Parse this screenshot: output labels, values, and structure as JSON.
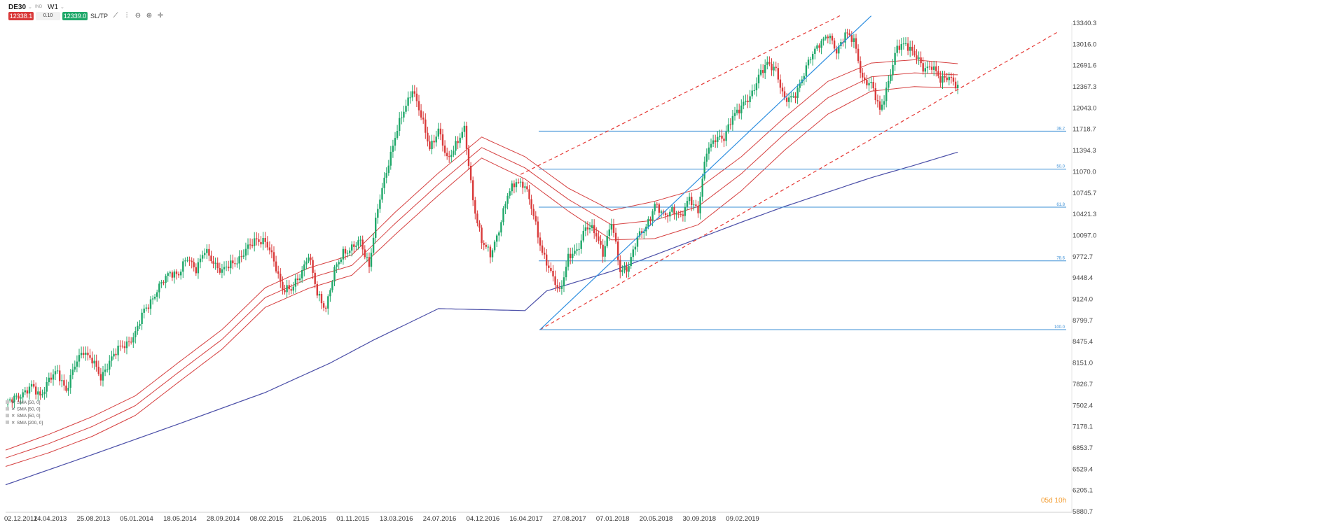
{
  "toolbar": {
    "symbol": "DE30",
    "symbol_sub": "IND",
    "timeframe": "W1",
    "sell_price": "12338.1",
    "volume": "0.10",
    "buy_price": "12339.0",
    "sltp_label": "SL/TP",
    "icons": [
      "line-chart-icon",
      "candles-icon",
      "zoom-out-icon",
      "zoom-in-icon",
      "crosshair-icon"
    ]
  },
  "colors": {
    "up": "#1fa86a",
    "down": "#d93a3a",
    "ma": "#d64141",
    "sma200": "#4b4fa8",
    "fib": "#3b8fd6",
    "channel": "#e53935",
    "trend": "#2f8fe0",
    "countdown": "#f39a2b"
  },
  "countdown": "05d 10h",
  "chart_data": {
    "type": "candlestick",
    "y_axis": {
      "ticks": [
        "13340.3",
        "13016.0",
        "12691.6",
        "12367.3",
        "12043.0",
        "11718.7",
        "11394.3",
        "11070.0",
        "10745.7",
        "10421.3",
        "10097.0",
        "9772.7",
        "9448.4",
        "9124.0",
        "8799.7",
        "8475.4",
        "8151.0",
        "7826.7",
        "7502.4",
        "7178.1",
        "6853.7",
        "6529.4",
        "6205.1",
        "5880.7"
      ],
      "range": [
        5880.7,
        13340.3
      ]
    },
    "x_axis": {
      "ticks": [
        "02.12.2012",
        "14.04.2013",
        "25.08.2013",
        "05.01.2014",
        "18.05.2014",
        "28.09.2014",
        "08.02.2015",
        "21.06.2015",
        "01.11.2015",
        "13.03.2016",
        "24.07.2016",
        "04.12.2016",
        "16.04.2017",
        "27.08.2017",
        "07.01.2018",
        "20.05.2018",
        "30.09.2018",
        "09.02.2019"
      ]
    },
    "price_path": [
      [
        0,
        7520
      ],
      [
        4,
        7600
      ],
      [
        8,
        7700
      ],
      [
        12,
        7780
      ],
      [
        16,
        7650
      ],
      [
        20,
        7900
      ],
      [
        24,
        8000
      ],
      [
        28,
        7750
      ],
      [
        32,
        8100
      ],
      [
        36,
        8350
      ],
      [
        40,
        8200
      ],
      [
        44,
        7900
      ],
      [
        48,
        8200
      ],
      [
        52,
        8350
      ],
      [
        56,
        8450
      ],
      [
        60,
        8600
      ],
      [
        64,
        8950
      ],
      [
        68,
        9150
      ],
      [
        72,
        9350
      ],
      [
        76,
        9550
      ],
      [
        80,
        9500
      ],
      [
        84,
        9750
      ],
      [
        88,
        9600
      ],
      [
        92,
        9850
      ],
      [
        96,
        9700
      ],
      [
        100,
        9550
      ],
      [
        104,
        9650
      ],
      [
        108,
        9750
      ],
      [
        112,
        9900
      ],
      [
        116,
        10050
      ],
      [
        120,
        10000
      ],
      [
        124,
        9700
      ],
      [
        128,
        9300
      ],
      [
        132,
        9250
      ],
      [
        136,
        9500
      ],
      [
        140,
        9800
      ],
      [
        144,
        9200
      ],
      [
        148,
        9000
      ],
      [
        152,
        9550
      ],
      [
        156,
        9850
      ],
      [
        160,
        9900
      ],
      [
        164,
        10000
      ],
      [
        168,
        9650
      ],
      [
        172,
        10500
      ],
      [
        176,
        11100
      ],
      [
        180,
        11600
      ],
      [
        184,
        12000
      ],
      [
        188,
        12350
      ],
      [
        192,
        11900
      ],
      [
        196,
        11450
      ],
      [
        200,
        11700
      ],
      [
        204,
        11250
      ],
      [
        208,
        11500
      ],
      [
        212,
        11700
      ],
      [
        216,
        10650
      ],
      [
        220,
        10000
      ],
      [
        224,
        9800
      ],
      [
        228,
        10200
      ],
      [
        232,
        10700
      ],
      [
        236,
        10950
      ],
      [
        240,
        10850
      ],
      [
        244,
        10400
      ],
      [
        248,
        9850
      ],
      [
        252,
        9500
      ],
      [
        256,
        9250
      ],
      [
        260,
        9750
      ],
      [
        264,
        9850
      ],
      [
        268,
        10250
      ],
      [
        272,
        10150
      ],
      [
        276,
        9850
      ],
      [
        280,
        10300
      ],
      [
        284,
        9550
      ],
      [
        288,
        9650
      ],
      [
        292,
        10050
      ],
      [
        296,
        10250
      ],
      [
        300,
        10550
      ],
      [
        304,
        10400
      ],
      [
        308,
        10500
      ],
      [
        312,
        10350
      ],
      [
        316,
        10700
      ],
      [
        320,
        10450
      ],
      [
        324,
        11400
      ],
      [
        328,
        11600
      ],
      [
        332,
        11550
      ],
      [
        336,
        11950
      ],
      [
        340,
        12050
      ],
      [
        344,
        12200
      ],
      [
        348,
        12550
      ],
      [
        352,
        12700
      ],
      [
        356,
        12650
      ],
      [
        360,
        12150
      ],
      [
        364,
        12200
      ],
      [
        368,
        12500
      ],
      [
        372,
        12800
      ],
      [
        376,
        13050
      ],
      [
        380,
        13150
      ],
      [
        384,
        12900
      ],
      [
        388,
        13200
      ],
      [
        392,
        13050
      ],
      [
        396,
        12500
      ],
      [
        400,
        12400
      ],
      [
        404,
        12000
      ],
      [
        408,
        12450
      ],
      [
        412,
        12950
      ],
      [
        416,
        13050
      ],
      [
        420,
        12850
      ],
      [
        424,
        12650
      ],
      [
        428,
        12700
      ],
      [
        432,
        12450
      ],
      [
        436,
        12550
      ],
      [
        440,
        12350
      ]
    ],
    "ma_bands": {
      "upper": [
        [
          0,
          6820
        ],
        [
          20,
          7060
        ],
        [
          40,
          7330
        ],
        [
          60,
          7650
        ],
        [
          80,
          8160
        ],
        [
          100,
          8660
        ],
        [
          120,
          9300
        ],
        [
          140,
          9600
        ],
        [
          160,
          9800
        ],
        [
          180,
          10450
        ],
        [
          200,
          11050
        ],
        [
          220,
          11600
        ],
        [
          240,
          11300
        ],
        [
          260,
          10820
        ],
        [
          280,
          10480
        ],
        [
          300,
          10620
        ],
        [
          320,
          10810
        ],
        [
          340,
          11300
        ],
        [
          360,
          11900
        ],
        [
          380,
          12450
        ],
        [
          400,
          12730
        ],
        [
          420,
          12780
        ],
        [
          440,
          12720
        ]
      ],
      "middle": [
        [
          0,
          6700
        ],
        [
          20,
          6920
        ],
        [
          40,
          7180
        ],
        [
          60,
          7500
        ],
        [
          80,
          8010
        ],
        [
          100,
          8510
        ],
        [
          120,
          9150
        ],
        [
          140,
          9440
        ],
        [
          160,
          9640
        ],
        [
          180,
          10280
        ],
        [
          200,
          10880
        ],
        [
          220,
          11440
        ],
        [
          240,
          11130
        ],
        [
          260,
          10650
        ],
        [
          280,
          10260
        ],
        [
          300,
          10330
        ],
        [
          320,
          10540
        ],
        [
          340,
          11040
        ],
        [
          360,
          11650
        ],
        [
          380,
          12200
        ],
        [
          400,
          12520
        ],
        [
          420,
          12580
        ],
        [
          440,
          12550
        ]
      ],
      "lower": [
        [
          0,
          6570
        ],
        [
          20,
          6780
        ],
        [
          40,
          7030
        ],
        [
          60,
          7350
        ],
        [
          80,
          7860
        ],
        [
          100,
          8360
        ],
        [
          120,
          9000
        ],
        [
          140,
          9290
        ],
        [
          160,
          9490
        ],
        [
          180,
          10110
        ],
        [
          200,
          10710
        ],
        [
          220,
          11280
        ],
        [
          240,
          10960
        ],
        [
          260,
          10470
        ],
        [
          280,
          10030
        ],
        [
          300,
          10050
        ],
        [
          320,
          10260
        ],
        [
          340,
          10780
        ],
        [
          360,
          11400
        ],
        [
          380,
          11950
        ],
        [
          400,
          12300
        ],
        [
          420,
          12370
        ],
        [
          440,
          12350
        ]
      ]
    },
    "sma200": [
      [
        0,
        6290
      ],
      [
        40,
        6750
      ],
      [
        80,
        7220
      ],
      [
        120,
        7700
      ],
      [
        150,
        8150
      ],
      [
        170,
        8500
      ],
      [
        200,
        8980
      ],
      [
        240,
        8950
      ],
      [
        250,
        9250
      ],
      [
        280,
        9550
      ],
      [
        300,
        9800
      ],
      [
        320,
        10050
      ],
      [
        340,
        10300
      ],
      [
        360,
        10540
      ],
      [
        380,
        10760
      ],
      [
        400,
        10980
      ],
      [
        420,
        11170
      ],
      [
        440,
        11370
      ]
    ],
    "fibonacci": [
      {
        "level": "38.2",
        "price": 11690
      },
      {
        "level": "50.0",
        "price": 11110
      },
      {
        "level": "61.8",
        "price": 10530
      },
      {
        "level": "78.6",
        "price": 9710
      },
      {
        "level": "100.0",
        "price": 8660
      }
    ],
    "legend": [
      "SMA [50, 0]",
      "SMA [50, 0]",
      "SMA [50, 0]",
      "SMA [200, 0]"
    ]
  }
}
